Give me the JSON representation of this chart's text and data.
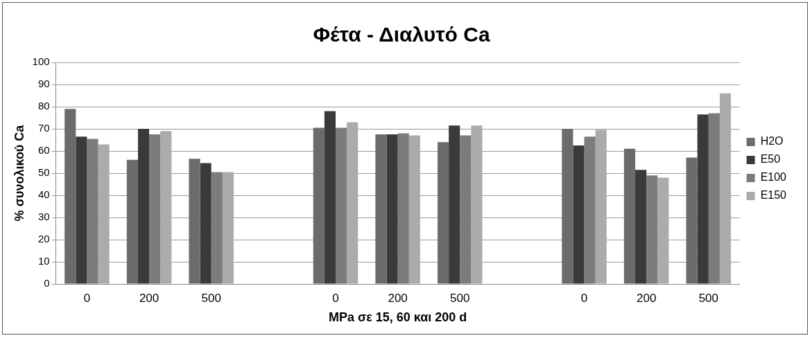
{
  "chart_data": {
    "type": "bar",
    "title": "Φέτα - Διαλυτό Ca",
    "xlabel": "MPa σε 15, 60 και 200 d",
    "ylabel": "% συνολικού Ca",
    "categories": [
      "0",
      "200",
      "500",
      null,
      "0",
      "200",
      "500",
      null,
      "0",
      "200",
      "500"
    ],
    "series": [
      {
        "name": "H2O",
        "color": "#6b6b6b",
        "values": [
          79,
          56,
          56.5,
          null,
          70.5,
          67.5,
          64,
          null,
          70,
          61,
          57
        ]
      },
      {
        "name": "E50",
        "color": "#3a3a3a",
        "values": [
          66.5,
          70,
          54.5,
          null,
          78,
          67.5,
          71.5,
          null,
          62.5,
          51.5,
          76.5
        ]
      },
      {
        "name": "E100",
        "color": "#7c7c7c",
        "values": [
          65.5,
          67.5,
          50.5,
          null,
          70.5,
          68,
          67,
          null,
          66.5,
          49,
          77
        ]
      },
      {
        "name": "E150",
        "color": "#ababab",
        "values": [
          63,
          69,
          50.5,
          null,
          73,
          67,
          71.5,
          null,
          69.5,
          48,
          86
        ]
      }
    ],
    "ylim": [
      0,
      100
    ],
    "yticks": [
      0,
      10,
      20,
      30,
      40,
      50,
      60,
      70,
      80,
      90,
      100
    ],
    "grid": "y",
    "legend": "right"
  }
}
